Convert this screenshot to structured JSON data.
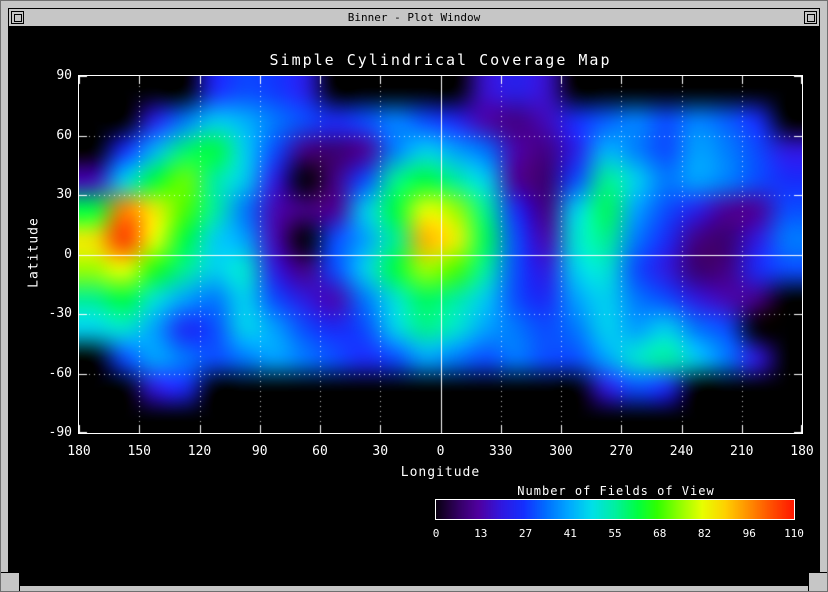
{
  "chrome": {
    "title": "Binner - Plot Window"
  },
  "colors": {
    "frame": "#c6c6c6",
    "plot_bg": "#000000",
    "plot_fg": "#ffffff"
  },
  "chart_data": {
    "type": "heatmap",
    "title": "Simple Cylindrical Coverage Map",
    "xlabel": "Longitude",
    "ylabel": "Latitude",
    "x_ticks": [
      "180",
      "150",
      "120",
      "90",
      "60",
      "30",
      "0",
      "330",
      "300",
      "270",
      "240",
      "210",
      "180"
    ],
    "y_ticks": [
      "90",
      "60",
      "30",
      "0",
      "-30",
      "-60",
      "-90"
    ],
    "x_span_deg": 360,
    "y_range": [
      -90,
      90
    ],
    "grid_step_deg": 30,
    "no_data_color": "#000000",
    "colorbar": {
      "title": "Number of Fields of View",
      "min": 0,
      "max": 110,
      "ticks": [
        "0",
        "13",
        "27",
        "41",
        "55",
        "68",
        "82",
        "96",
        "110"
      ]
    },
    "colormap_stops": [
      {
        "v": 0,
        "c": "#0a0012"
      },
      {
        "v": 8,
        "c": "#3a0070"
      },
      {
        "v": 13,
        "c": "#5000a0"
      },
      {
        "v": 20,
        "c": "#3018e0"
      },
      {
        "v": 27,
        "c": "#1430ff"
      },
      {
        "v": 34,
        "c": "#0070ff"
      },
      {
        "v": 41,
        "c": "#00aaff"
      },
      {
        "v": 48,
        "c": "#00e0e8"
      },
      {
        "v": 55,
        "c": "#00f0a0"
      },
      {
        "v": 62,
        "c": "#00ff40"
      },
      {
        "v": 68,
        "c": "#30ff00"
      },
      {
        "v": 75,
        "c": "#90ff00"
      },
      {
        "v": 82,
        "c": "#e8ff00"
      },
      {
        "v": 89,
        "c": "#ffd000"
      },
      {
        "v": 96,
        "c": "#ff9000"
      },
      {
        "v": 103,
        "c": "#ff5000"
      },
      {
        "v": 110,
        "c": "#ff1800"
      }
    ],
    "grid": {
      "cols": 24,
      "rows": 12,
      "cell_deg": 15,
      "values": [
        [
          0,
          0,
          0,
          0,
          25,
          30,
          28,
          22,
          0,
          0,
          0,
          0,
          0,
          18,
          22,
          18,
          0,
          0,
          0,
          0,
          0,
          0,
          0,
          0
        ],
        [
          0,
          0,
          22,
          35,
          45,
          42,
          35,
          30,
          25,
          30,
          36,
          30,
          24,
          14,
          10,
          16,
          26,
          32,
          36,
          30,
          36,
          32,
          26,
          0
        ],
        [
          0,
          26,
          42,
          58,
          62,
          46,
          30,
          10,
          8,
          12,
          36,
          46,
          40,
          34,
          14,
          10,
          22,
          42,
          36,
          30,
          40,
          36,
          30,
          20
        ],
        [
          16,
          46,
          62,
          72,
          55,
          45,
          20,
          0,
          10,
          30,
          56,
          62,
          55,
          46,
          12,
          8,
          30,
          56,
          46,
          35,
          40,
          36,
          30,
          26
        ],
        [
          62,
          98,
          85,
          70,
          55,
          35,
          15,
          10,
          12,
          45,
          62,
          82,
          76,
          56,
          25,
          10,
          46,
          60,
          40,
          30,
          22,
          12,
          12,
          30
        ],
        [
          86,
          106,
          82,
          62,
          46,
          40,
          15,
          0,
          30,
          40,
          56,
          92,
          84,
          60,
          30,
          15,
          50,
          56,
          35,
          25,
          10,
          8,
          20,
          35
        ],
        [
          76,
          82,
          66,
          56,
          46,
          50,
          20,
          10,
          30,
          46,
          62,
          76,
          70,
          55,
          30,
          20,
          46,
          50,
          30,
          20,
          8,
          10,
          25,
          30
        ],
        [
          56,
          62,
          50,
          40,
          35,
          46,
          30,
          20,
          15,
          35,
          50,
          60,
          55,
          45,
          30,
          25,
          40,
          46,
          35,
          30,
          20,
          15,
          10,
          0
        ],
        [
          46,
          50,
          40,
          25,
          30,
          46,
          40,
          30,
          25,
          30,
          46,
          56,
          50,
          40,
          35,
          30,
          35,
          46,
          40,
          46,
          35,
          30,
          0,
          0
        ],
        [
          0,
          30,
          40,
          35,
          30,
          35,
          40,
          35,
          30,
          25,
          30,
          40,
          35,
          30,
          35,
          30,
          30,
          40,
          50,
          55,
          45,
          35,
          20,
          0
        ],
        [
          0,
          0,
          20,
          25,
          0,
          0,
          0,
          0,
          0,
          0,
          0,
          0,
          0,
          0,
          0,
          0,
          0,
          20,
          30,
          25,
          0,
          0,
          0,
          0
        ],
        [
          0,
          0,
          0,
          0,
          0,
          0,
          0,
          0,
          0,
          0,
          0,
          0,
          0,
          0,
          0,
          0,
          0,
          0,
          0,
          0,
          0,
          0,
          0,
          0
        ]
      ]
    }
  }
}
